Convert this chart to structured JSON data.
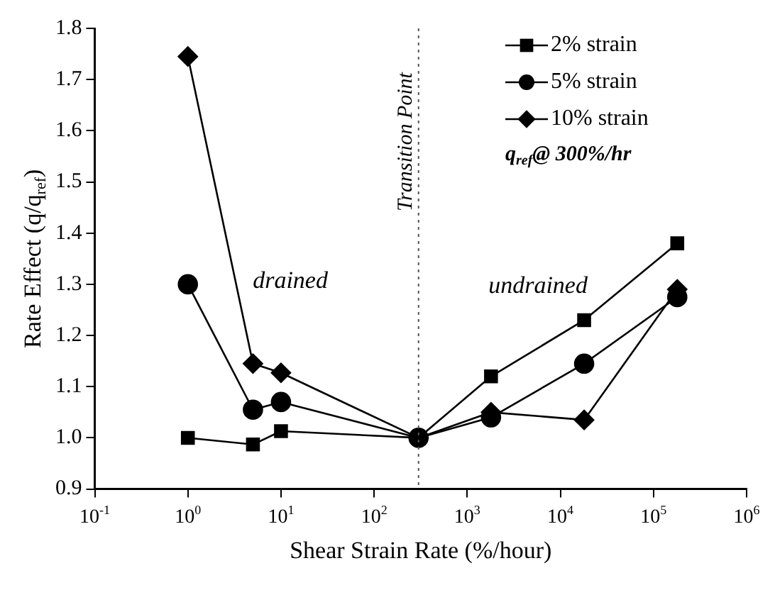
{
  "chart_data": {
    "type": "line",
    "xlabel": "Shear Strain Rate (%/hour)",
    "ylabel": "Rate Effect (q/q$_{ref}$)",
    "log": "x",
    "grid": false,
    "legend": "top right",
    "xlim": [
      0.1,
      1000000
    ],
    "xticks": [
      {
        "value": 0.1,
        "label": "10$^{-1}$"
      },
      {
        "value": 1,
        "label": "10$^{0}$"
      },
      {
        "value": 10,
        "label": "10$^{1}$"
      },
      {
        "value": 100,
        "label": "10$^{2}$"
      },
      {
        "value": 1000,
        "label": "10$^{3}$"
      },
      {
        "value": 10000,
        "label": "10$^{4}$"
      },
      {
        "value": 100000,
        "label": "10$^{5}$"
      },
      {
        "value": 1000000,
        "label": "10$^{6}$"
      }
    ],
    "ylim": [
      0.9,
      1.8
    ],
    "yticks": [
      {
        "value": 0.9,
        "label": "0.9"
      },
      {
        "value": 1.0,
        "label": "1.0"
      },
      {
        "value": 1.1,
        "label": "1.1"
      },
      {
        "value": 1.2,
        "label": "1.2"
      },
      {
        "value": 1.3,
        "label": "1.3"
      },
      {
        "value": 1.4,
        "label": "1.4"
      },
      {
        "value": 1.5,
        "label": "1.5"
      },
      {
        "value": 1.6,
        "label": "1.6"
      },
      {
        "value": 1.7,
        "label": "1.7"
      },
      {
        "value": 1.8,
        "label": "1.8"
      }
    ],
    "x": [
      1,
      5,
      10,
      300,
      1800,
      18000,
      180000
    ],
    "series": [
      {
        "name": "2% strain",
        "color": "#000000",
        "marker": "square",
        "values": [
          1.0,
          0.987,
          1.013,
          1.0,
          1.12,
          1.23,
          1.38
        ]
      },
      {
        "name": "5% strain",
        "color": "#000000",
        "marker": "circle",
        "values": [
          1.3,
          1.055,
          1.07,
          1.0,
          1.04,
          1.145,
          1.275
        ]
      },
      {
        "name": "10% strain",
        "color": "#000000",
        "marker": "diamond",
        "values": [
          1.745,
          1.145,
          1.127,
          1.0,
          1.05,
          1.035,
          1.29
        ]
      }
    ],
    "ref_lines": [
      {
        "axis": "x",
        "value": 300,
        "label": "Transition Point",
        "line_style": "dotted",
        "color": "#555555"
      }
    ],
    "annotations": [
      "drained",
      "undrained",
      "q$_{ref}$@ 300%/hr"
    ]
  }
}
